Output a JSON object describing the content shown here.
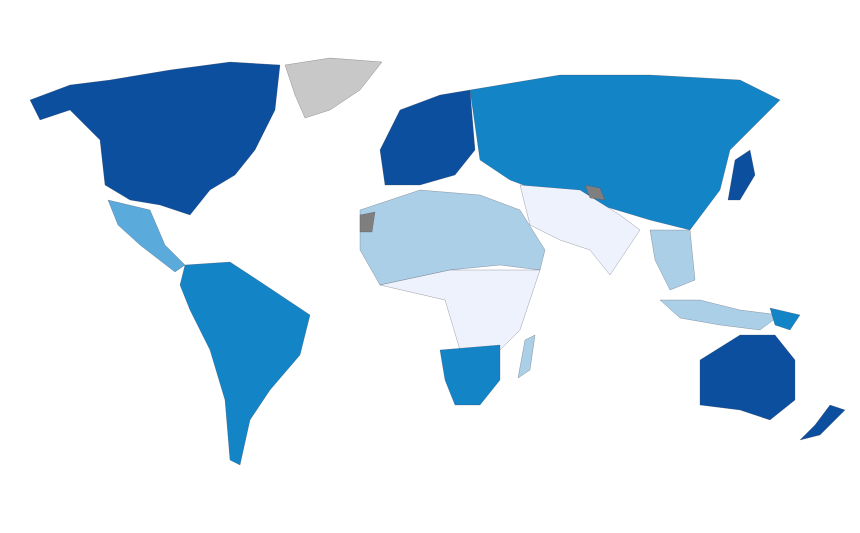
{
  "map": {
    "colors": [
      "#0b4f9e",
      "#1384c6",
      "#5aaadc",
      "#abcfe6",
      "#eef2fc",
      "#c8c8c8",
      "#7f7f7f"
    ]
  }
}
